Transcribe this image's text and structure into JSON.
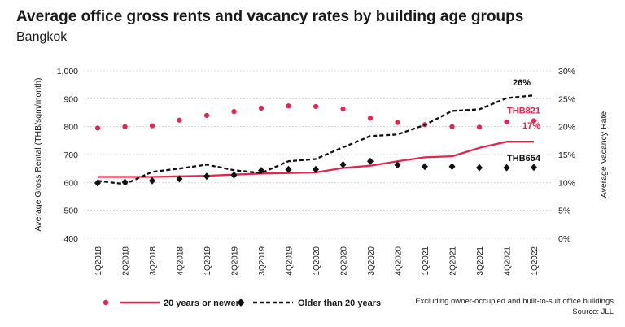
{
  "title": "Average office gross rents and vacancy rates by building age groups",
  "subtitle": "Bangkok",
  "footnote": "Excluding owner-occupied and built-to-suit office buildings",
  "source": "Source: JLL",
  "colors": {
    "new": "#e4254f",
    "old": "#111111",
    "grid": "#cfcfcf"
  },
  "chart_data": {
    "type": "line",
    "categories": [
      "1Q2018",
      "2Q2018",
      "3Q2018",
      "4Q2018",
      "1Q2019",
      "2Q2019",
      "3Q2019",
      "4Q2019",
      "1Q2020",
      "2Q2020",
      "3Q2020",
      "4Q2020",
      "1Q2021",
      "2Q2021",
      "3Q2021",
      "4Q2021",
      "1Q2022"
    ],
    "ylabel": "Average Gross Rental (THB/sqm/month)",
    "y2label": "Average Vacancy Rate",
    "ylim": [
      400,
      1000
    ],
    "yticks": [
      "400",
      "500",
      "600",
      "700",
      "800",
      "900",
      "1,000"
    ],
    "y2lim": [
      0,
      30
    ],
    "y2ticks": [
      "0%",
      "5%",
      "10%",
      "15%",
      "20%",
      "25%",
      "30%"
    ],
    "series": [
      {
        "name": "20 years or newer",
        "kind": "rent",
        "marker": "dot",
        "axis": "left",
        "values": [
          795,
          800,
          803,
          823,
          840,
          854,
          866,
          874,
          872,
          863,
          830,
          815,
          807,
          800,
          798,
          817,
          821
        ]
      },
      {
        "name": "20 years or newer",
        "kind": "vacancy",
        "marker": "line",
        "axis": "right",
        "values": [
          11.0,
          11.0,
          11.0,
          11.1,
          11.2,
          11.4,
          11.6,
          11.7,
          11.8,
          12.6,
          13.0,
          13.8,
          14.5,
          14.7,
          16.2,
          17.3,
          17.3
        ]
      },
      {
        "name": "Older than 20 years",
        "kind": "rent",
        "marker": "diamond",
        "axis": "left",
        "values": [
          598,
          601,
          606,
          613,
          622,
          627,
          643,
          647,
          647,
          664,
          676,
          663,
          657,
          657,
          653,
          653,
          654
        ]
      },
      {
        "name": "Older than 20 years",
        "kind": "vacancy",
        "marker": "dashed",
        "axis": "right",
        "values": [
          10.3,
          9.7,
          11.9,
          12.5,
          13.2,
          12.2,
          11.7,
          13.8,
          14.2,
          16.3,
          18.3,
          18.6,
          20.3,
          22.8,
          23.1,
          25.1,
          25.6
        ]
      }
    ],
    "annotations": [
      {
        "text": "26%",
        "series": 3,
        "color": "old"
      },
      {
        "text": "THB821",
        "series": 0,
        "color": "new"
      },
      {
        "text": "17%",
        "series": 1,
        "color": "new"
      },
      {
        "text": "THB654",
        "series": 2,
        "color": "old"
      }
    ],
    "legend": [
      "20 years or newer",
      "Older than 20 years"
    ],
    "grid": true,
    "legend_position": "bottom"
  }
}
